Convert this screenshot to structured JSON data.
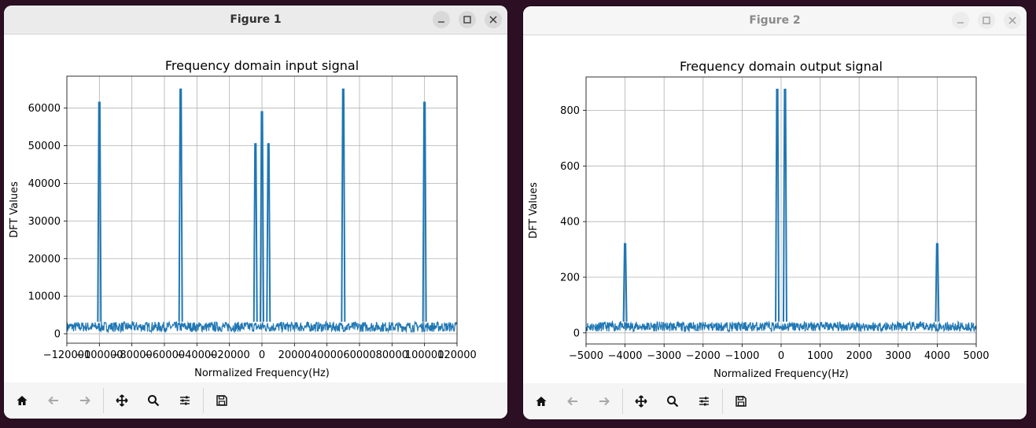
{
  "windows": [
    {
      "title": "Figure 1",
      "chart_data": {
        "type": "line",
        "title": "Frequency domain input signal",
        "xlabel": "Normalized Frequency(Hz)",
        "ylabel": "DFT Values",
        "xlim": [
          -120000,
          120000
        ],
        "ylim": [
          -2500,
          68500
        ],
        "xticks": [
          -120000,
          -100000,
          -80000,
          -60000,
          -40000,
          -20000,
          0,
          20000,
          40000,
          60000,
          80000,
          100000,
          120000
        ],
        "yticks": [
          0,
          10000,
          20000,
          30000,
          40000,
          50000,
          60000
        ],
        "grid": true,
        "noise_floor": [
          500,
          3200
        ],
        "peaks": [
          {
            "x": -100000,
            "y": 61500
          },
          {
            "x": -50000,
            "y": 65000
          },
          {
            "x": -4000,
            "y": 50500
          },
          {
            "x": 0,
            "y": 59000
          },
          {
            "x": 4000,
            "y": 50500
          },
          {
            "x": 50000,
            "y": 65000
          },
          {
            "x": 100000,
            "y": 61500
          }
        ]
      }
    },
    {
      "title": "Figure 2",
      "chart_data": {
        "type": "line",
        "title": "Frequency domain output signal",
        "xlabel": "Normalized Frequency(Hz)",
        "ylabel": "DFT Values",
        "xlim": [
          -5000,
          5000
        ],
        "ylim": [
          -40,
          920
        ],
        "xticks": [
          -5000,
          -4000,
          -3000,
          -2000,
          -1000,
          0,
          1000,
          2000,
          3000,
          4000,
          5000
        ],
        "yticks": [
          0,
          200,
          400,
          600,
          800
        ],
        "grid": true,
        "noise_floor": [
          5,
          40
        ],
        "peaks": [
          {
            "x": -4000,
            "y": 320
          },
          {
            "x": -100,
            "y": 875
          },
          {
            "x": 100,
            "y": 875
          },
          {
            "x": 4000,
            "y": 320
          }
        ]
      }
    }
  ],
  "colors": {
    "line": "#1f77b4",
    "grid": "#b0b0b0",
    "axis": "#000000"
  },
  "toolbar_icons": [
    "home-icon",
    "back-arrow-icon",
    "forward-arrow-icon",
    "pan-icon",
    "zoom-icon",
    "configure-subplots-icon",
    "save-icon"
  ]
}
